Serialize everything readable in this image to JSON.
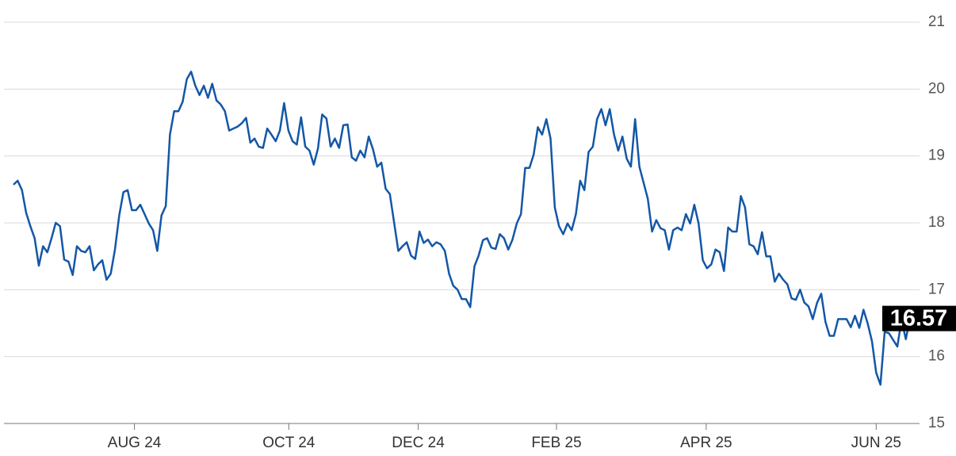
{
  "chart_data": {
    "type": "line",
    "series": [
      {
        "color": "#1357a6",
        "values": [
          18.57,
          18.63,
          18.49,
          18.15,
          17.95,
          17.77,
          17.36,
          17.65,
          17.56,
          17.77,
          18.0,
          17.95,
          17.45,
          17.42,
          17.22,
          17.65,
          17.58,
          17.56,
          17.65,
          17.29,
          17.38,
          17.44,
          17.15,
          17.24,
          17.6,
          18.11,
          18.46,
          18.49,
          18.19,
          18.19,
          18.27,
          18.13,
          17.99,
          17.89,
          17.58,
          18.11,
          18.25,
          19.32,
          19.67,
          19.67,
          19.81,
          20.15,
          20.26,
          20.05,
          19.91,
          20.05,
          19.87,
          20.08,
          19.83,
          19.77,
          19.67,
          19.38,
          19.41,
          19.44,
          19.49,
          19.57,
          19.2,
          19.26,
          19.14,
          19.12,
          19.41,
          19.32,
          19.22,
          19.38,
          19.79,
          19.38,
          19.22,
          19.17,
          19.58,
          19.14,
          19.08,
          18.87,
          19.11,
          19.62,
          19.56,
          19.14,
          19.26,
          19.12,
          19.46,
          19.47,
          18.98,
          18.93,
          19.08,
          18.98,
          19.29,
          19.1,
          18.84,
          18.9,
          18.51,
          18.43,
          18.01,
          17.58,
          17.65,
          17.71,
          17.51,
          17.46,
          17.87,
          17.7,
          17.75,
          17.65,
          17.71,
          17.68,
          17.58,
          17.24,
          17.06,
          17.0,
          16.86,
          16.86,
          16.74,
          17.35,
          17.51,
          17.74,
          17.77,
          17.63,
          17.61,
          17.83,
          17.77,
          17.6,
          17.75,
          17.99,
          18.13,
          18.82,
          18.82,
          19.02,
          19.43,
          19.32,
          19.55,
          19.26,
          18.23,
          17.95,
          17.83,
          17.99,
          17.89,
          18.13,
          18.63,
          18.49,
          19.06,
          19.14,
          19.55,
          19.7,
          19.46,
          19.7,
          19.32,
          19.08,
          19.29,
          18.96,
          18.84,
          19.55,
          18.84,
          18.6,
          18.36,
          17.87,
          18.04,
          17.92,
          17.89,
          17.6,
          17.89,
          17.93,
          17.89,
          18.13,
          17.99,
          18.27,
          17.99,
          17.44,
          17.32,
          17.38,
          17.6,
          17.56,
          17.28,
          17.93,
          17.87,
          17.87,
          18.4,
          18.23,
          17.68,
          17.65,
          17.53,
          17.86,
          17.5,
          17.5,
          17.12,
          17.24,
          17.15,
          17.08,
          16.87,
          16.85,
          17.0,
          16.81,
          16.75,
          16.56,
          16.8,
          16.94,
          16.52,
          16.31,
          16.31,
          16.56,
          16.56,
          16.56,
          16.44,
          16.61,
          16.43,
          16.7,
          16.49,
          16.23,
          15.76,
          15.58,
          16.37,
          16.35,
          16.25,
          16.15,
          16.55,
          16.26,
          16.57
        ]
      }
    ],
    "xlim": [
      0,
      212
    ],
    "xticks": [
      {
        "value": 28.6,
        "label": "AUG 24"
      },
      {
        "value": 65.1,
        "label": "OCT 24"
      },
      {
        "value": 95.7,
        "label": "DEC 24"
      },
      {
        "value": 128.4,
        "label": "FEB 25"
      },
      {
        "value": 163.8,
        "label": "APR 25"
      },
      {
        "value": 204,
        "label": "JUN 25"
      }
    ],
    "ylim": [
      15,
      21
    ],
    "yticks": [
      15,
      16,
      17,
      18,
      19,
      20,
      21
    ],
    "grid": true
  }
}
